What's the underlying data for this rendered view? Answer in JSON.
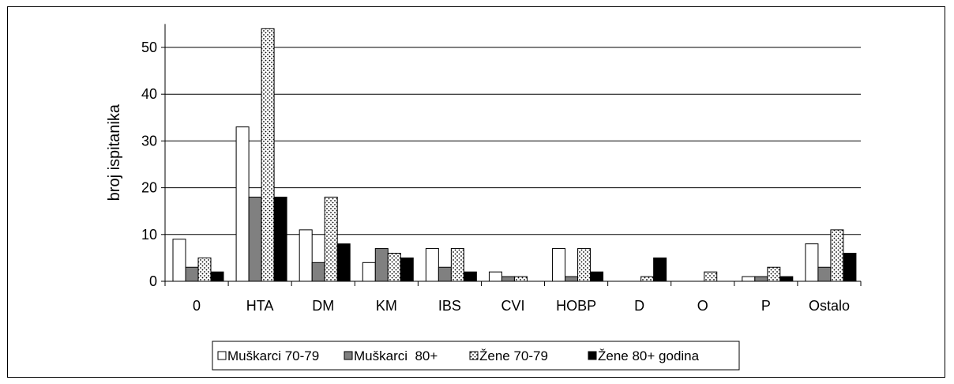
{
  "chart_data": {
    "type": "bar",
    "title": "",
    "xlabel": "",
    "ylabel": "broj ispitanika",
    "ylim": [
      0,
      55
    ],
    "yticks": [
      0,
      10,
      20,
      30,
      40,
      50
    ],
    "grid": true,
    "legend_position": "bottom",
    "categories": [
      "0",
      "HTA",
      "DM",
      "KM",
      "IBS",
      "CVI",
      "HOBP",
      "D",
      "O",
      "P",
      "Ostalo"
    ],
    "series": [
      {
        "name": "Muškarci 70-79",
        "fill": "white",
        "values": [
          9,
          33,
          11,
          4,
          7,
          2,
          7,
          0,
          0,
          1,
          8
        ]
      },
      {
        "name": "Muškarci  80+",
        "fill": "gray",
        "values": [
          3,
          18,
          4,
          7,
          3,
          1,
          1,
          0,
          0,
          1,
          3
        ]
      },
      {
        "name": "Žene 70-79",
        "fill": "dotted",
        "values": [
          5,
          54,
          18,
          6,
          7,
          1,
          7,
          1,
          2,
          3,
          11
        ]
      },
      {
        "name": "Žene 80+ godina",
        "fill": "black",
        "values": [
          2,
          18,
          8,
          5,
          2,
          0,
          2,
          5,
          0,
          1,
          6
        ]
      }
    ],
    "colors": {
      "gray": "#808080",
      "black": "#000000",
      "white": "#ffffff",
      "grid": "#000000"
    }
  }
}
